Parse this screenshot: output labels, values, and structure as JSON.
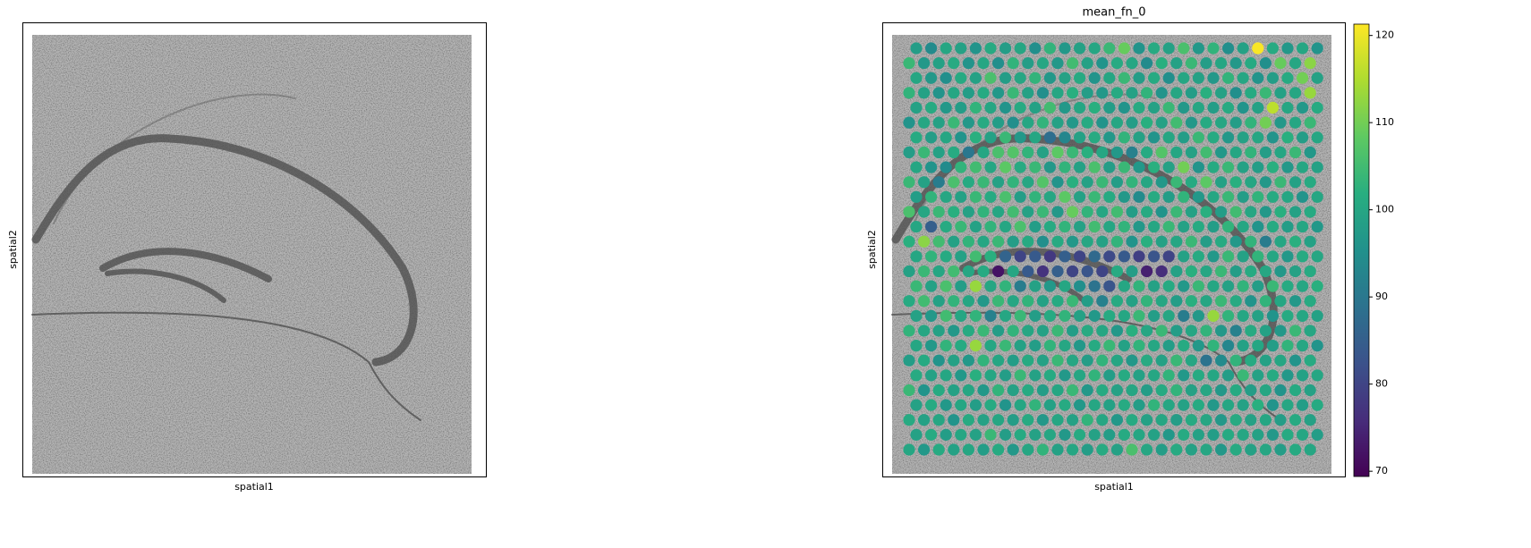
{
  "chart_data": [
    {
      "type": "image",
      "xlabel": "spatial1",
      "ylabel": "spatial2"
    },
    {
      "type": "spatial",
      "title": "mean_fn_0",
      "xlabel": "spatial1",
      "ylabel": "spatial2",
      "colormap": "viridis",
      "clim": [
        69.4,
        121.3
      ],
      "cticks": [
        70,
        80,
        90,
        100,
        110,
        120
      ],
      "spots": [
        [
          98,
          94,
          100,
          99,
          96,
          101,
          98,
          100,
          95,
          103,
          97,
          99,
          100,
          104,
          109,
          96,
          101,
          99,
          106,
          97,
          103,
          95,
          99,
          121,
          101,
          97,
          100,
          96
        ],
        [
          104,
          97,
          99,
          101,
          96,
          100,
          95,
          103,
          98,
          100,
          97,
          105,
          99,
          96,
          101,
          100,
          94,
          102,
          99,
          104,
          98,
          100,
          97,
          101,
          95,
          109,
          100,
          112
        ],
        [
          100,
          97,
          95,
          101,
          99,
          106,
          98,
          100,
          103,
          97,
          99,
          101,
          96,
          100,
          104,
          98,
          101,
          95,
          100,
          99,
          97,
          103,
          100,
          96,
          98,
          101,
          110,
          99
        ],
        [
          103,
          99,
          96,
          100,
          98,
          101,
          97,
          104,
          99,
          95,
          100,
          102,
          98,
          97,
          101,
          99,
          103,
          96,
          100,
          98,
          102,
          99,
          95,
          101,
          104,
          99,
          100,
          113
        ],
        [
          99,
          101,
          97,
          98,
          103,
          100,
          96,
          101,
          99,
          105,
          97,
          100,
          102,
          98,
          96,
          101,
          99,
          104,
          97,
          100,
          98,
          101,
          96,
          99,
          116,
          100,
          97,
          101
        ],
        [
          96,
          100,
          99,
          104,
          97,
          101,
          98,
          95,
          100,
          103,
          99,
          97,
          101,
          96,
          100,
          98,
          102,
          99,
          105,
          97,
          101,
          100,
          98,
          103,
          110,
          97,
          100,
          104
        ],
        [
          101,
          98,
          100,
          96,
          102,
          99,
          104,
          97,
          100,
          88,
          93,
          99,
          101,
          97,
          103,
          99,
          96,
          100,
          98,
          104,
          101,
          97,
          99,
          100,
          96,
          102,
          98,
          100
        ],
        [
          98,
          104,
          99,
          101,
          90,
          100,
          106,
          107,
          103,
          99,
          108,
          104,
          102,
          100,
          97,
          92,
          101,
          107,
          100,
          99,
          105,
          97,
          100,
          103,
          98,
          100,
          104,
          97
        ],
        [
          100,
          96,
          94,
          103,
          105,
          100,
          108,
          101,
          104,
          97,
          103,
          99,
          106,
          98,
          104,
          97,
          102,
          99,
          110,
          96,
          101,
          104,
          99,
          98,
          102,
          97,
          100,
          99
        ],
        [
          104,
          99,
          91,
          106,
          101,
          104,
          99,
          103,
          100,
          107,
          96,
          102,
          99,
          104,
          98,
          103,
          100,
          97,
          104,
          101,
          108,
          99,
          102,
          100,
          97,
          104,
          99,
          101
        ],
        [
          98,
          103,
          100,
          99,
          104,
          101,
          106,
          98,
          103,
          100,
          108,
          99,
          104,
          101,
          97,
          94,
          101,
          98,
          103,
          97,
          100,
          104,
          98,
          103,
          101,
          100,
          96,
          100
        ],
        [
          106,
          100,
          104,
          102,
          99,
          103,
          100,
          105,
          99,
          104,
          97,
          109,
          103,
          100,
          105,
          98,
          101,
          96,
          104,
          99,
          102,
          98,
          105,
          100,
          97,
          102,
          99,
          101
        ],
        [
          100,
          85,
          101,
          104,
          99,
          103,
          100,
          106,
          98,
          101,
          103,
          99,
          105,
          100,
          103,
          97,
          100,
          104,
          99,
          101,
          98,
          103,
          100,
          96,
          101,
          98,
          100,
          97
        ],
        [
          102,
          112,
          105,
          99,
          103,
          100,
          104,
          98,
          101,
          95,
          101,
          97,
          100,
          99,
          103,
          96,
          102,
          99,
          100,
          104,
          98,
          101,
          97,
          103,
          91,
          100,
          102,
          99
        ],
        [
          100,
          103,
          101,
          99,
          105,
          102,
          86,
          80,
          84,
          78,
          85,
          80,
          87,
          81,
          84,
          79,
          83,
          80,
          99,
          101,
          97,
          104,
          99,
          103,
          100,
          97,
          101,
          100
        ],
        [
          99,
          104,
          100,
          105,
          100,
          101,
          72,
          100,
          84,
          77,
          85,
          80,
          83,
          80,
          101,
          98,
          74,
          76,
          99,
          102,
          100,
          104,
          98,
          101,
          100,
          97,
          99,
          101
        ],
        [
          104,
          99,
          106,
          98,
          113,
          100,
          103,
          91,
          99,
          97,
          100,
          95,
          89,
          83,
          100,
          103,
          99,
          101,
          97,
          104,
          100,
          99,
          103,
          98,
          104,
          101,
          100,
          102
        ],
        [
          101,
          105,
          99,
          103,
          100,
          97,
          104,
          100,
          103,
          99,
          101,
          104,
          98,
          92,
          101,
          99,
          103,
          100,
          98,
          102,
          100,
          104,
          101,
          96,
          103,
          100,
          97,
          101
        ],
        [
          99,
          97,
          105,
          100,
          103,
          92,
          100,
          104,
          98,
          101,
          103,
          99,
          97,
          101,
          100,
          104,
          98,
          100,
          91,
          97,
          113,
          103,
          100,
          99,
          96,
          101,
          100,
          99
        ],
        [
          103,
          100,
          99,
          97,
          101,
          104,
          98,
          103,
          100,
          99,
          104,
          98,
          101,
          100,
          97,
          102,
          100,
          104,
          98,
          100,
          103,
          97,
          92,
          101,
          99,
          97,
          104,
          100
        ],
        [
          100,
          97,
          103,
          101,
          113,
          100,
          104,
          99,
          98,
          103,
          100,
          97,
          101,
          104,
          99,
          103,
          100,
          98,
          101,
          97,
          103,
          93,
          99,
          100,
          98,
          103,
          100,
          96
        ],
        [
          98,
          101,
          96,
          99,
          97,
          103,
          100,
          98,
          101,
          99,
          104,
          100,
          98,
          103,
          100,
          97,
          101,
          99,
          104,
          100,
          89,
          94,
          103,
          101,
          99,
          100,
          96,
          101
        ],
        [
          101,
          99,
          100,
          97,
          102,
          100,
          98,
          104,
          99,
          101,
          97,
          100,
          103,
          98,
          101,
          99,
          100,
          103,
          97,
          101,
          100,
          98,
          104,
          99,
          101,
          97,
          99,
          100
        ],
        [
          104,
          96,
          101,
          99,
          100,
          97,
          103,
          99,
          101,
          98,
          100,
          104,
          97,
          101,
          99,
          100,
          98,
          101,
          103,
          99,
          100,
          97,
          101,
          98,
          100,
          96,
          101,
          99
        ],
        [
          99,
          101,
          97,
          100,
          98,
          101,
          96,
          100,
          103,
          99,
          101,
          97,
          100,
          99,
          101,
          98,
          103,
          100,
          99,
          101,
          97,
          100,
          99,
          102,
          96,
          100,
          98,
          101
        ],
        [
          101,
          99,
          100,
          96,
          101,
          99,
          100,
          98,
          101,
          97,
          100,
          99,
          103,
          100,
          97,
          101,
          99,
          100,
          98,
          101,
          100,
          97,
          101,
          99,
          100,
          98,
          101,
          99
        ],
        [
          99,
          101,
          98,
          100,
          99,
          104,
          98,
          101,
          99,
          100,
          97,
          101,
          99,
          98,
          101,
          100,
          99,
          97,
          101,
          99,
          98,
          101,
          100,
          99,
          97,
          101,
          100,
          98
        ],
        [
          100,
          97,
          101,
          99,
          100,
          98,
          101,
          97,
          100,
          103,
          99,
          100,
          98,
          101,
          99,
          106,
          100,
          98,
          101,
          99,
          100,
          97,
          101,
          99,
          100,
          98,
          101,
          100
        ]
      ]
    }
  ]
}
